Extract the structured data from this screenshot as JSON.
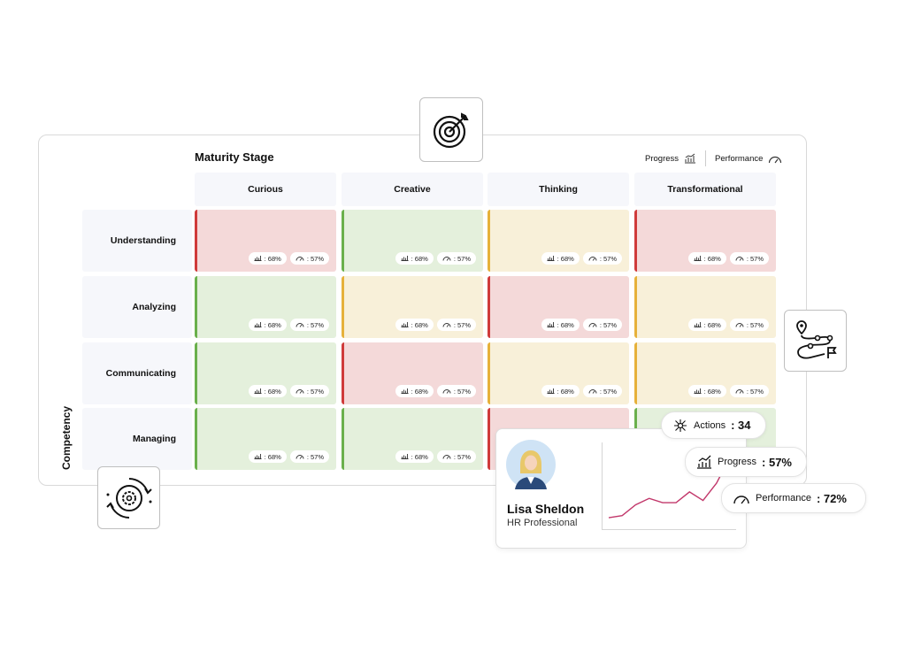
{
  "matrix": {
    "stage_title": "Maturity Stage",
    "competency_label": "Competency",
    "legend": {
      "progress_label": "Progress",
      "performance_label": "Performance"
    },
    "columns": [
      "Curious",
      "Creative",
      "Thinking",
      "Transformational"
    ],
    "rows": [
      {
        "label": "Understanding",
        "cells": [
          {
            "status": "red",
            "progress": ": 68%",
            "performance": ": 57%"
          },
          {
            "status": "green",
            "progress": ": 68%",
            "performance": ": 57%"
          },
          {
            "status": "yellow",
            "progress": ": 68%",
            "performance": ": 57%"
          },
          {
            "status": "red",
            "progress": ": 68%",
            "performance": ": 57%"
          }
        ]
      },
      {
        "label": "Analyzing",
        "cells": [
          {
            "status": "green",
            "progress": ": 68%",
            "performance": ": 57%"
          },
          {
            "status": "yellow",
            "progress": ": 68%",
            "performance": ": 57%"
          },
          {
            "status": "red",
            "progress": ": 68%",
            "performance": ": 57%"
          },
          {
            "status": "yellow",
            "progress": ": 68%",
            "performance": ": 57%"
          }
        ]
      },
      {
        "label": "Communicating",
        "cells": [
          {
            "status": "green",
            "progress": ": 68%",
            "performance": ": 57%"
          },
          {
            "status": "red",
            "progress": ": 68%",
            "performance": ": 57%"
          },
          {
            "status": "yellow",
            "progress": ": 68%",
            "performance": ": 57%"
          },
          {
            "status": "yellow",
            "progress": ": 68%",
            "performance": ": 57%"
          }
        ]
      },
      {
        "label": "Managing",
        "cells": [
          {
            "status": "green",
            "progress": ": 68%",
            "performance": ": 57%"
          },
          {
            "status": "green",
            "progress": ": 68%",
            "performance": ": 57%"
          },
          {
            "status": "red",
            "progress": "",
            "performance": ""
          },
          {
            "status": "green",
            "progress": "",
            "performance": ""
          }
        ]
      }
    ],
    "colors": {
      "red": "#cf3a3a",
      "green": "#6ab04c",
      "yellow": "#e6b13a"
    }
  },
  "profile": {
    "name": "Lisa Sheldon",
    "role": "HR Professional",
    "trend_line": [
      2,
      3,
      8,
      11,
      9,
      9,
      14,
      10,
      18,
      30
    ],
    "trend_color": "#c2386b"
  },
  "tags": {
    "actions": {
      "label": "Actions",
      "value": ": 34"
    },
    "progress": {
      "label": "Progress",
      "value": ": 57%"
    },
    "performance": {
      "label": "Performance",
      "value": ": 72%"
    }
  },
  "icons": [
    "target-icon",
    "route-map-icon",
    "gear-cycle-icon",
    "progress-chart-icon",
    "gauge-icon",
    "network-icon"
  ]
}
